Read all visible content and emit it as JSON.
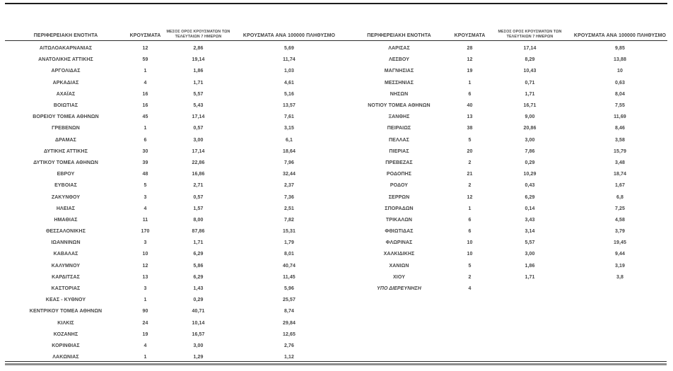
{
  "colors": {
    "text": "#454545",
    "rule_dark": "#1d1d1d",
    "rule_gray": "#8d8d8d",
    "background": "#ffffff"
  },
  "columns": {
    "region": "ΠΕΡΙΦΕΡΕΙΑΚΗ ΕΝΟΤΗΤΑ",
    "cases": "ΚΡΟΥΣΜΑΤΑ",
    "avg7_line1": "ΜΕΣΟΣ ΟΡΟΣ ΚΡΟΥΣΜΑΤΩΝ ΤΩΝ",
    "avg7_line2": "ΤΕΛΕΥΤΑΙΩΝ 7 ΗΜΕΡΩΝ",
    "per100k": "ΚΡΟΥΣΜΑΤΑ ΑΝΑ 100000 ΠΛΗΘΥΣΜΟ"
  },
  "left_table": {
    "rows": [
      [
        "ΑΙΤΩΛΟΑΚΑΡΝΑΝΙΑΣ",
        "12",
        "2,86",
        "5,69"
      ],
      [
        "ΑΝΑΤΟΛΙΚΗΣ ΑΤΤΙΚΗΣ",
        "59",
        "19,14",
        "11,74"
      ],
      [
        "ΑΡΓΟΛΙΔΑΣ",
        "1",
        "1,86",
        "1,03"
      ],
      [
        "ΑΡΚΑΔΙΑΣ",
        "4",
        "1,71",
        "4,61"
      ],
      [
        "ΑΧΑΪΑΣ",
        "16",
        "5,57",
        "5,16"
      ],
      [
        "ΒΟΙΩΤΙΑΣ",
        "16",
        "5,43",
        "13,57"
      ],
      [
        "ΒΟΡΕΙΟΥ ΤΟΜΕΑ ΑΘΗΝΩΝ",
        "45",
        "17,14",
        "7,61"
      ],
      [
        "ΓΡΕΒΕΝΩΝ",
        "1",
        "0,57",
        "3,15"
      ],
      [
        "ΔΡΑΜΑΣ",
        "6",
        "3,00",
        "6,1"
      ],
      [
        "ΔΥΤΙΚΗΣ ΑΤΤΙΚΗΣ",
        "30",
        "17,14",
        "18,64"
      ],
      [
        "ΔΥΤΙΚΟΥ ΤΟΜΕΑ ΑΘΗΝΩΝ",
        "39",
        "22,86",
        "7,96"
      ],
      [
        "ΕΒΡΟΥ",
        "48",
        "16,86",
        "32,44"
      ],
      [
        "ΕΥΒΟΙΑΣ",
        "5",
        "2,71",
        "2,37"
      ],
      [
        "ΖΑΚΥΝΘΟΥ",
        "3",
        "0,57",
        "7,36"
      ],
      [
        "ΗΛΕΙΑΣ",
        "4",
        "1,57",
        "2,51"
      ],
      [
        "ΗΜΑΘΙΑΣ",
        "11",
        "8,00",
        "7,82"
      ],
      [
        "ΘΕΣΣΑΛΟΝΙΚΗΣ",
        "170",
        "87,86",
        "15,31"
      ],
      [
        "ΙΩΑΝΝΙΝΩΝ",
        "3",
        "1,71",
        "1,79"
      ],
      [
        "ΚΑΒΑΛΑΣ",
        "10",
        "6,29",
        "8,01"
      ],
      [
        "ΚΑΛΥΜΝΟΥ",
        "12",
        "5,86",
        "40,74"
      ],
      [
        "ΚΑΡΔΙΤΣΑΣ",
        "13",
        "6,29",
        "11,45"
      ],
      [
        "ΚΑΣΤΟΡΙΑΣ",
        "3",
        "1,43",
        "5,96"
      ],
      [
        "ΚΕΑΣ - ΚΥΘΝΟΥ",
        "1",
        "0,29",
        "25,57"
      ],
      [
        "ΚΕΝΤΡΙΚΟΥ ΤΟΜΕΑ ΑΘΗΝΩΝ",
        "90",
        "40,71",
        "8,74"
      ],
      [
        "ΚΙΛΚΙΣ",
        "24",
        "10,14",
        "29,84"
      ],
      [
        "ΚΟΖΑΝΗΣ",
        "19",
        "16,57",
        "12,65"
      ],
      [
        "ΚΟΡΙΝΘΙΑΣ",
        "4",
        "3,00",
        "2,76"
      ],
      [
        "ΛΑΚΩΝΙΑΣ",
        "1",
        "1,29",
        "1,12"
      ]
    ]
  },
  "right_table": {
    "rows": [
      [
        "ΛΑΡΙΣΑΣ",
        "28",
        "17,14",
        "9,85"
      ],
      [
        "ΛΕΣΒΟΥ",
        "12",
        "8,29",
        "13,88"
      ],
      [
        "ΜΑΓΝΗΣΙΑΣ",
        "19",
        "10,43",
        "10"
      ],
      [
        "ΜΕΣΣΗΝΙΑΣ",
        "1",
        "0,71",
        "0,63"
      ],
      [
        "ΝΗΣΩΝ",
        "6",
        "1,71",
        "8,04"
      ],
      [
        "ΝΟΤΙΟΥ ΤΟΜΕΑ ΑΘΗΝΩΝ",
        "40",
        "16,71",
        "7,55"
      ],
      [
        "ΞΑΝΘΗΣ",
        "13",
        "9,00",
        "11,69"
      ],
      [
        "ΠΕΙΡΑΙΩΣ",
        "38",
        "20,86",
        "8,46"
      ],
      [
        "ΠΕΛΛΑΣ",
        "5",
        "3,00",
        "3,58"
      ],
      [
        "ΠΙΕΡΙΑΣ",
        "20",
        "7,86",
        "15,79"
      ],
      [
        "ΠΡΕΒΕΖΑΣ",
        "2",
        "0,29",
        "3,48"
      ],
      [
        "ΡΟΔΟΠΗΣ",
        "21",
        "10,29",
        "18,74"
      ],
      [
        "ΡΟΔΟΥ",
        "2",
        "0,43",
        "1,67"
      ],
      [
        "ΣΕΡΡΩΝ",
        "12",
        "6,29",
        "6,8"
      ],
      [
        "ΣΠΟΡΑΔΩΝ",
        "1",
        "0,14",
        "7,25"
      ],
      [
        "ΤΡΙΚΑΛΩΝ",
        "6",
        "3,43",
        "4,58"
      ],
      [
        "ΦΘΙΩΤΙΔΑΣ",
        "6",
        "3,14",
        "3,79"
      ],
      [
        "ΦΛΩΡΙΝΑΣ",
        "10",
        "5,57",
        "19,45"
      ],
      [
        "ΧΑΛΚΙΔΙΚΗΣ",
        "10",
        "3,00",
        "9,44"
      ],
      [
        "ΧΑΝΙΩΝ",
        "5",
        "1,86",
        "3,19"
      ],
      [
        "ΧΙΟΥ",
        "2",
        "1,71",
        "3,8"
      ],
      [
        "ΥΠΟ ΔΙΕΡΕΥΝΗΣΗ",
        "4",
        "",
        ""
      ]
    ]
  }
}
